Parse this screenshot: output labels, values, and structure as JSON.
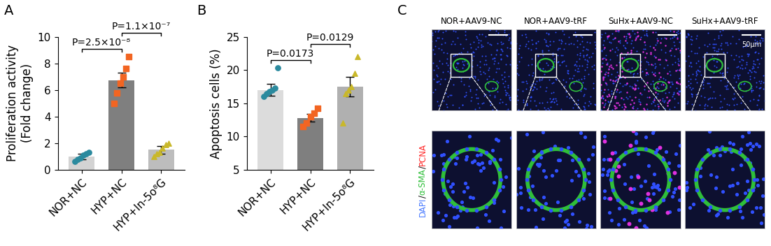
{
  "chart_data": [
    {
      "type": "bar",
      "panel": "A",
      "ylabel": "Proliferation activity\n(Fold change)",
      "categories": [
        "NOR+NC",
        "HYP+NC",
        "HYP+In-5o⁸G"
      ],
      "values": [
        1.0,
        6.75,
        1.5
      ],
      "errors": [
        0.2,
        0.55,
        0.3
      ],
      "colors": [
        "#d3d3d3",
        "#7f7f7f",
        "#bdbdbd"
      ],
      "points": [
        {
          "values": [
            0.6,
            0.8,
            0.9,
            1.1,
            1.2,
            1.3
          ],
          "color": "#2b8a9e",
          "marker": "circle"
        },
        {
          "values": [
            5.0,
            5.8,
            6.5,
            7.0,
            7.6,
            8.5
          ],
          "color": "#f26522",
          "marker": "square"
        },
        {
          "values": [
            1.0,
            1.2,
            1.3,
            1.6,
            1.9,
            2.0
          ],
          "color": "#c9b82a",
          "marker": "triangle"
        }
      ],
      "ylim": [
        0,
        10
      ],
      "yticks": [
        0,
        2,
        4,
        6,
        8,
        10
      ],
      "annotations": [
        {
          "text": "P=2.5×10⁻⁸",
          "between": [
            "NOR+NC",
            "HYP+NC"
          ]
        },
        {
          "text": "P=1.1×10⁻⁷",
          "between": [
            "HYP+NC",
            "HYP+In-5o⁸G"
          ]
        }
      ]
    },
    {
      "type": "bar",
      "panel": "B",
      "ylabel": "Apoptosis cells (%)",
      "categories": [
        "NOR+NC",
        "HYP+NC",
        "HYP+In-5o⁸G"
      ],
      "values": [
        17.0,
        12.8,
        17.5
      ],
      "errors": [
        0.9,
        0.6,
        1.5
      ],
      "colors": [
        "#dcdcdc",
        "#7f7f7f",
        "#b0b0b0"
      ],
      "points": [
        {
          "values": [
            16.0,
            16.5,
            16.8,
            17.0,
            17.3,
            20.3
          ],
          "color": "#2b8a9e",
          "marker": "circle"
        },
        {
          "values": [
            11.5,
            12.0,
            13.0,
            13.5,
            14.2
          ],
          "color": "#f26522",
          "marker": "square"
        },
        {
          "values": [
            12.0,
            16.5,
            17.0,
            17.5,
            19.5,
            22.0
          ],
          "color": "#c9b82a",
          "marker": "triangle"
        }
      ],
      "ylim": [
        5,
        25
      ],
      "yticks": [
        5,
        10,
        15,
        20,
        25
      ],
      "annotations": [
        {
          "text": "P=0.0173",
          "between": [
            "NOR+NC",
            "HYP+NC"
          ]
        },
        {
          "text": "P=0.0129",
          "between": [
            "HYP+NC",
            "HYP+In-5o⁸G"
          ]
        }
      ]
    }
  ],
  "image_panel": {
    "panel": "C",
    "columns": [
      "NOR+AAV9-NC",
      "NOR+AAV9-tRF",
      "SuHx+AAV9-NC",
      "SuHx+AAV9-tRF"
    ],
    "stains": [
      {
        "text": "DAPI",
        "color": "#4a7bff"
      },
      {
        "text": "α-SMA",
        "color": "#2fbf3a"
      },
      {
        "text": "PCNA",
        "color": "#ff2a2a"
      }
    ],
    "separator": "/",
    "scale_bar": "50μm"
  }
}
